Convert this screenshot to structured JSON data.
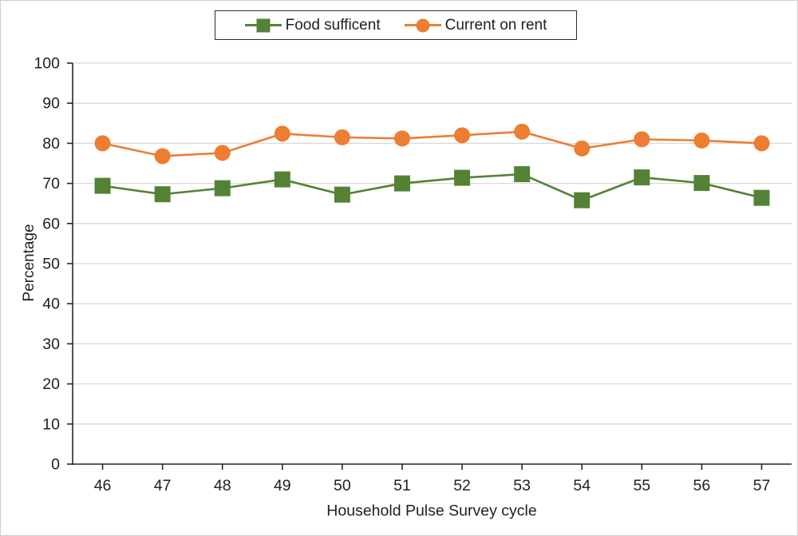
{
  "figure": {
    "background": "#ffffff",
    "frame_border_color": "#cfcfcf",
    "gridline_color": "#d9d9d9",
    "axis_color": "#262626",
    "text_color": "#212121"
  },
  "chart_data": {
    "type": "line",
    "title": "",
    "xlabel": "Household Pulse Survey cycle",
    "ylabel": "Percentage",
    "x": [
      46,
      47,
      48,
      49,
      50,
      51,
      52,
      53,
      54,
      55,
      56,
      57
    ],
    "series": [
      {
        "name": "Food sufficent",
        "color": "#548235",
        "marker": "square",
        "values": [
          69.4,
          67.3,
          68.8,
          71.0,
          67.2,
          70.0,
          71.4,
          72.3,
          65.8,
          71.5,
          70.1,
          66.4
        ]
      },
      {
        "name": "Current on rent",
        "color": "#ED7D31",
        "marker": "circle",
        "values": [
          80.0,
          76.8,
          77.6,
          82.4,
          81.5,
          81.2,
          82.0,
          82.9,
          78.7,
          81.0,
          80.7,
          80.0
        ]
      }
    ],
    "ylim": [
      0,
      100
    ],
    "yticks": [
      0,
      10,
      20,
      30,
      40,
      50,
      60,
      70,
      80,
      90,
      100
    ],
    "grid": true,
    "legend_position": "top-center"
  }
}
